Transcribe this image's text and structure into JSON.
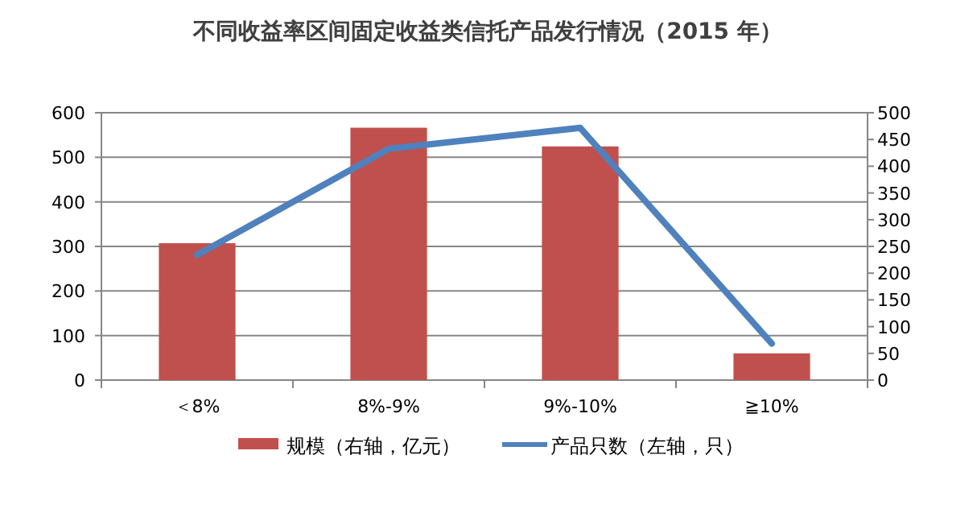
{
  "chart_data": {
    "type": "bar",
    "title": "不同收益率区间固定收益类信托产品发行情况（2015 年）",
    "categories": [
      "＜8%",
      "8%-9%",
      "9%-10%",
      "≧10%"
    ],
    "series": [
      {
        "name": "规模（右轴，亿元）",
        "axis": "y2",
        "color": "#c0504d",
        "values": [
          256,
          472,
          437,
          50
        ]
      },
      {
        "name": "产品只数（左轴，只）",
        "type": "line",
        "axis": "y",
        "color": "#4f81bd",
        "values": [
          281,
          519,
          566,
          82
        ]
      }
    ],
    "ylim": [
      0,
      600
    ],
    "yticks": [
      0,
      100,
      200,
      300,
      400,
      500,
      600
    ],
    "y2lim": [
      0,
      500
    ],
    "y2ticks": [
      0,
      50,
      100,
      150,
      200,
      250,
      300,
      350,
      400,
      450,
      500
    ],
    "grid": "y",
    "legend": "bottom",
    "marker": "none",
    "line_style": "solid"
  }
}
